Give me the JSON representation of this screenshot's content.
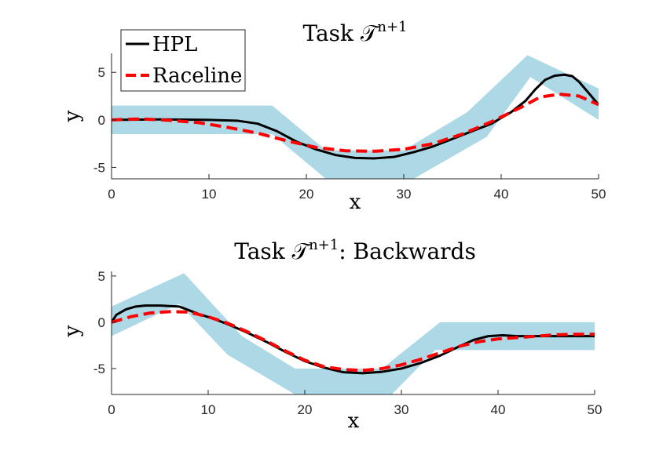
{
  "chart_data": [
    {
      "type": "line",
      "title": "Task 𝒯",
      "title_sup": "n+1",
      "xlabel": "x",
      "ylabel": "y",
      "xlim": [
        0,
        50
      ],
      "ylim": [
        -6.2,
        7
      ],
      "xticks": [
        0,
        10,
        20,
        30,
        40,
        50
      ],
      "yticks": [
        5,
        0,
        -5
      ],
      "legend": {
        "placement": "top-left",
        "entries": [
          "HPL",
          "Raceline"
        ]
      },
      "colors": {
        "band": "#add8e6",
        "hpl": "#000000",
        "raceline": "#ff0000"
      },
      "band_upper": {
        "x": [
          0,
          16.5,
          22,
          30,
          36.5,
          42.7,
          50
        ],
        "y": [
          1.5,
          1.5,
          -3.2,
          -3.2,
          0.8,
          6.8,
          3.3
        ]
      },
      "band_lower": {
        "x": [
          0,
          16.5,
          22,
          31,
          38.5,
          43,
          50
        ],
        "y": [
          -1.5,
          -1.5,
          -6.2,
          -6.2,
          -1.8,
          4.5,
          0
        ]
      },
      "series": [
        {
          "name": "HPL",
          "x": [
            0,
            5,
            10,
            13,
            15,
            17,
            19,
            21,
            23,
            25,
            27,
            29,
            31,
            33,
            35,
            37,
            39,
            41,
            42.5,
            43.5,
            44.5,
            45.5,
            46.5,
            47.3,
            48,
            49,
            50
          ],
          "y": [
            0,
            0.05,
            0,
            -0.1,
            -0.4,
            -1.2,
            -2.3,
            -3.1,
            -3.7,
            -4.0,
            -4.05,
            -3.9,
            -3.4,
            -2.8,
            -2.0,
            -1.2,
            -0.4,
            0.8,
            2.0,
            3.2,
            4.2,
            4.65,
            4.75,
            4.6,
            4.0,
            2.8,
            1.6
          ]
        },
        {
          "name": "Raceline",
          "x": [
            0,
            3,
            6,
            9,
            12,
            15,
            18,
            21,
            24,
            27,
            30,
            33,
            36,
            39,
            42,
            44,
            46,
            48,
            50
          ],
          "y": [
            0,
            0.1,
            -0.05,
            -0.3,
            -0.8,
            -1.4,
            -2.2,
            -2.9,
            -3.25,
            -3.3,
            -3.1,
            -2.5,
            -1.5,
            -0.2,
            1.3,
            2.4,
            2.7,
            2.5,
            1.6
          ]
        }
      ]
    },
    {
      "type": "line",
      "title": "Task 𝒯",
      "title_sup": "n+1",
      "title_suffix": ": Backwards",
      "xlabel": "x",
      "ylabel": "y",
      "xlim": [
        0,
        50
      ],
      "ylim": [
        -7.8,
        5.5
      ],
      "xticks": [
        0,
        10,
        20,
        30,
        40,
        50
      ],
      "yticks": [
        5,
        0,
        -5
      ],
      "colors": {
        "band": "#add8e6",
        "hpl": "#000000",
        "raceline": "#ff0000"
      },
      "band_upper": {
        "x": [
          0,
          7.5,
          13.5,
          19,
          28,
          34,
          50
        ],
        "y": [
          1.7,
          5.3,
          -1.5,
          -5.0,
          -5.0,
          0,
          0
        ]
      },
      "band_lower": {
        "x": [
          0,
          7,
          12,
          19,
          29,
          33.5,
          50
        ],
        "y": [
          -1.5,
          2.0,
          -3.5,
          -7.8,
          -7.8,
          -3.0,
          -3.0
        ]
      },
      "series": [
        {
          "name": "HPL",
          "x": [
            0,
            0.5,
            1.5,
            2.5,
            3.5,
            5,
            7,
            8,
            9,
            10.5,
            12,
            14,
            16,
            18,
            20,
            22,
            24,
            26,
            28,
            30,
            32,
            34,
            36,
            37.5,
            39,
            40.5,
            42,
            45,
            50
          ],
          "y": [
            0,
            0.8,
            1.4,
            1.7,
            1.8,
            1.8,
            1.7,
            1.3,
            0.9,
            0.4,
            -0.2,
            -1.1,
            -2.1,
            -3.2,
            -4.2,
            -4.9,
            -5.4,
            -5.5,
            -5.35,
            -5.0,
            -4.4,
            -3.6,
            -2.6,
            -1.9,
            -1.5,
            -1.4,
            -1.5,
            -1.5,
            -1.5
          ]
        },
        {
          "name": "Raceline",
          "x": [
            0,
            2,
            4,
            6,
            8,
            10,
            12,
            14,
            16,
            18,
            20,
            22,
            24,
            26,
            28,
            30,
            32,
            34,
            36,
            38,
            40,
            42,
            44,
            46,
            48,
            50
          ],
          "y": [
            0,
            0.6,
            1.0,
            1.15,
            1.1,
            0.6,
            -0.1,
            -1.0,
            -2.0,
            -3.1,
            -4.1,
            -4.8,
            -5.1,
            -5.2,
            -5.0,
            -4.6,
            -4.0,
            -3.3,
            -2.6,
            -2.1,
            -1.8,
            -1.65,
            -1.5,
            -1.35,
            -1.3,
            -1.3
          ]
        }
      ]
    }
  ]
}
